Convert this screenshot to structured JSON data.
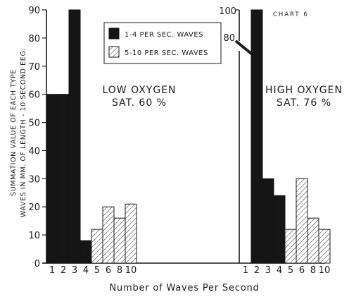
{
  "chart_data": {
    "type": "bar",
    "chart_label": "CHART 6",
    "ylabel_line1": "SUMMATION VALUE OF EACH TYPE",
    "ylabel_line2": "WAVES IN MM. OF LENGTH - 10 SECOND EEG.",
    "xlabel": "Number of Waves Per Second",
    "legend": [
      {
        "name": "1-4 PER SEC. WAVES",
        "style": "solid",
        "color": "#151515"
      },
      {
        "name": "5-10 PER SEC. WAVES",
        "style": "hatched",
        "color": "#1a1a1a"
      }
    ],
    "panels": [
      {
        "annotation_line1": "LOW OXYGEN",
        "annotation_line2": "SAT. 60 %",
        "ylim": [
          0,
          90
        ],
        "yticks": [
          "0",
          "10",
          "20",
          "30",
          "40",
          "50",
          "60",
          "70",
          "80",
          "90"
        ],
        "categories": [
          "1",
          "2",
          "3",
          "4",
          "5",
          "6",
          "8",
          "10"
        ],
        "values": [
          60,
          60,
          90,
          8,
          12,
          20,
          16,
          21
        ],
        "series_index": [
          0,
          0,
          0,
          0,
          1,
          1,
          1,
          1
        ]
      },
      {
        "annotation_line1": "HIGH OXYGEN",
        "annotation_line2": "SAT. 76 %",
        "ylim": [
          0,
          100
        ],
        "axis_break": {
          "below": 80,
          "label": "80"
        },
        "yticks": [
          "100",
          "80"
        ],
        "categories": [
          "1",
          "2",
          "3",
          "4",
          "5",
          "6",
          "8",
          "10"
        ],
        "values": [
          0,
          100,
          30,
          24,
          12,
          30,
          16,
          12
        ],
        "series_index": [
          0,
          0,
          0,
          0,
          1,
          1,
          1,
          1
        ]
      }
    ]
  }
}
